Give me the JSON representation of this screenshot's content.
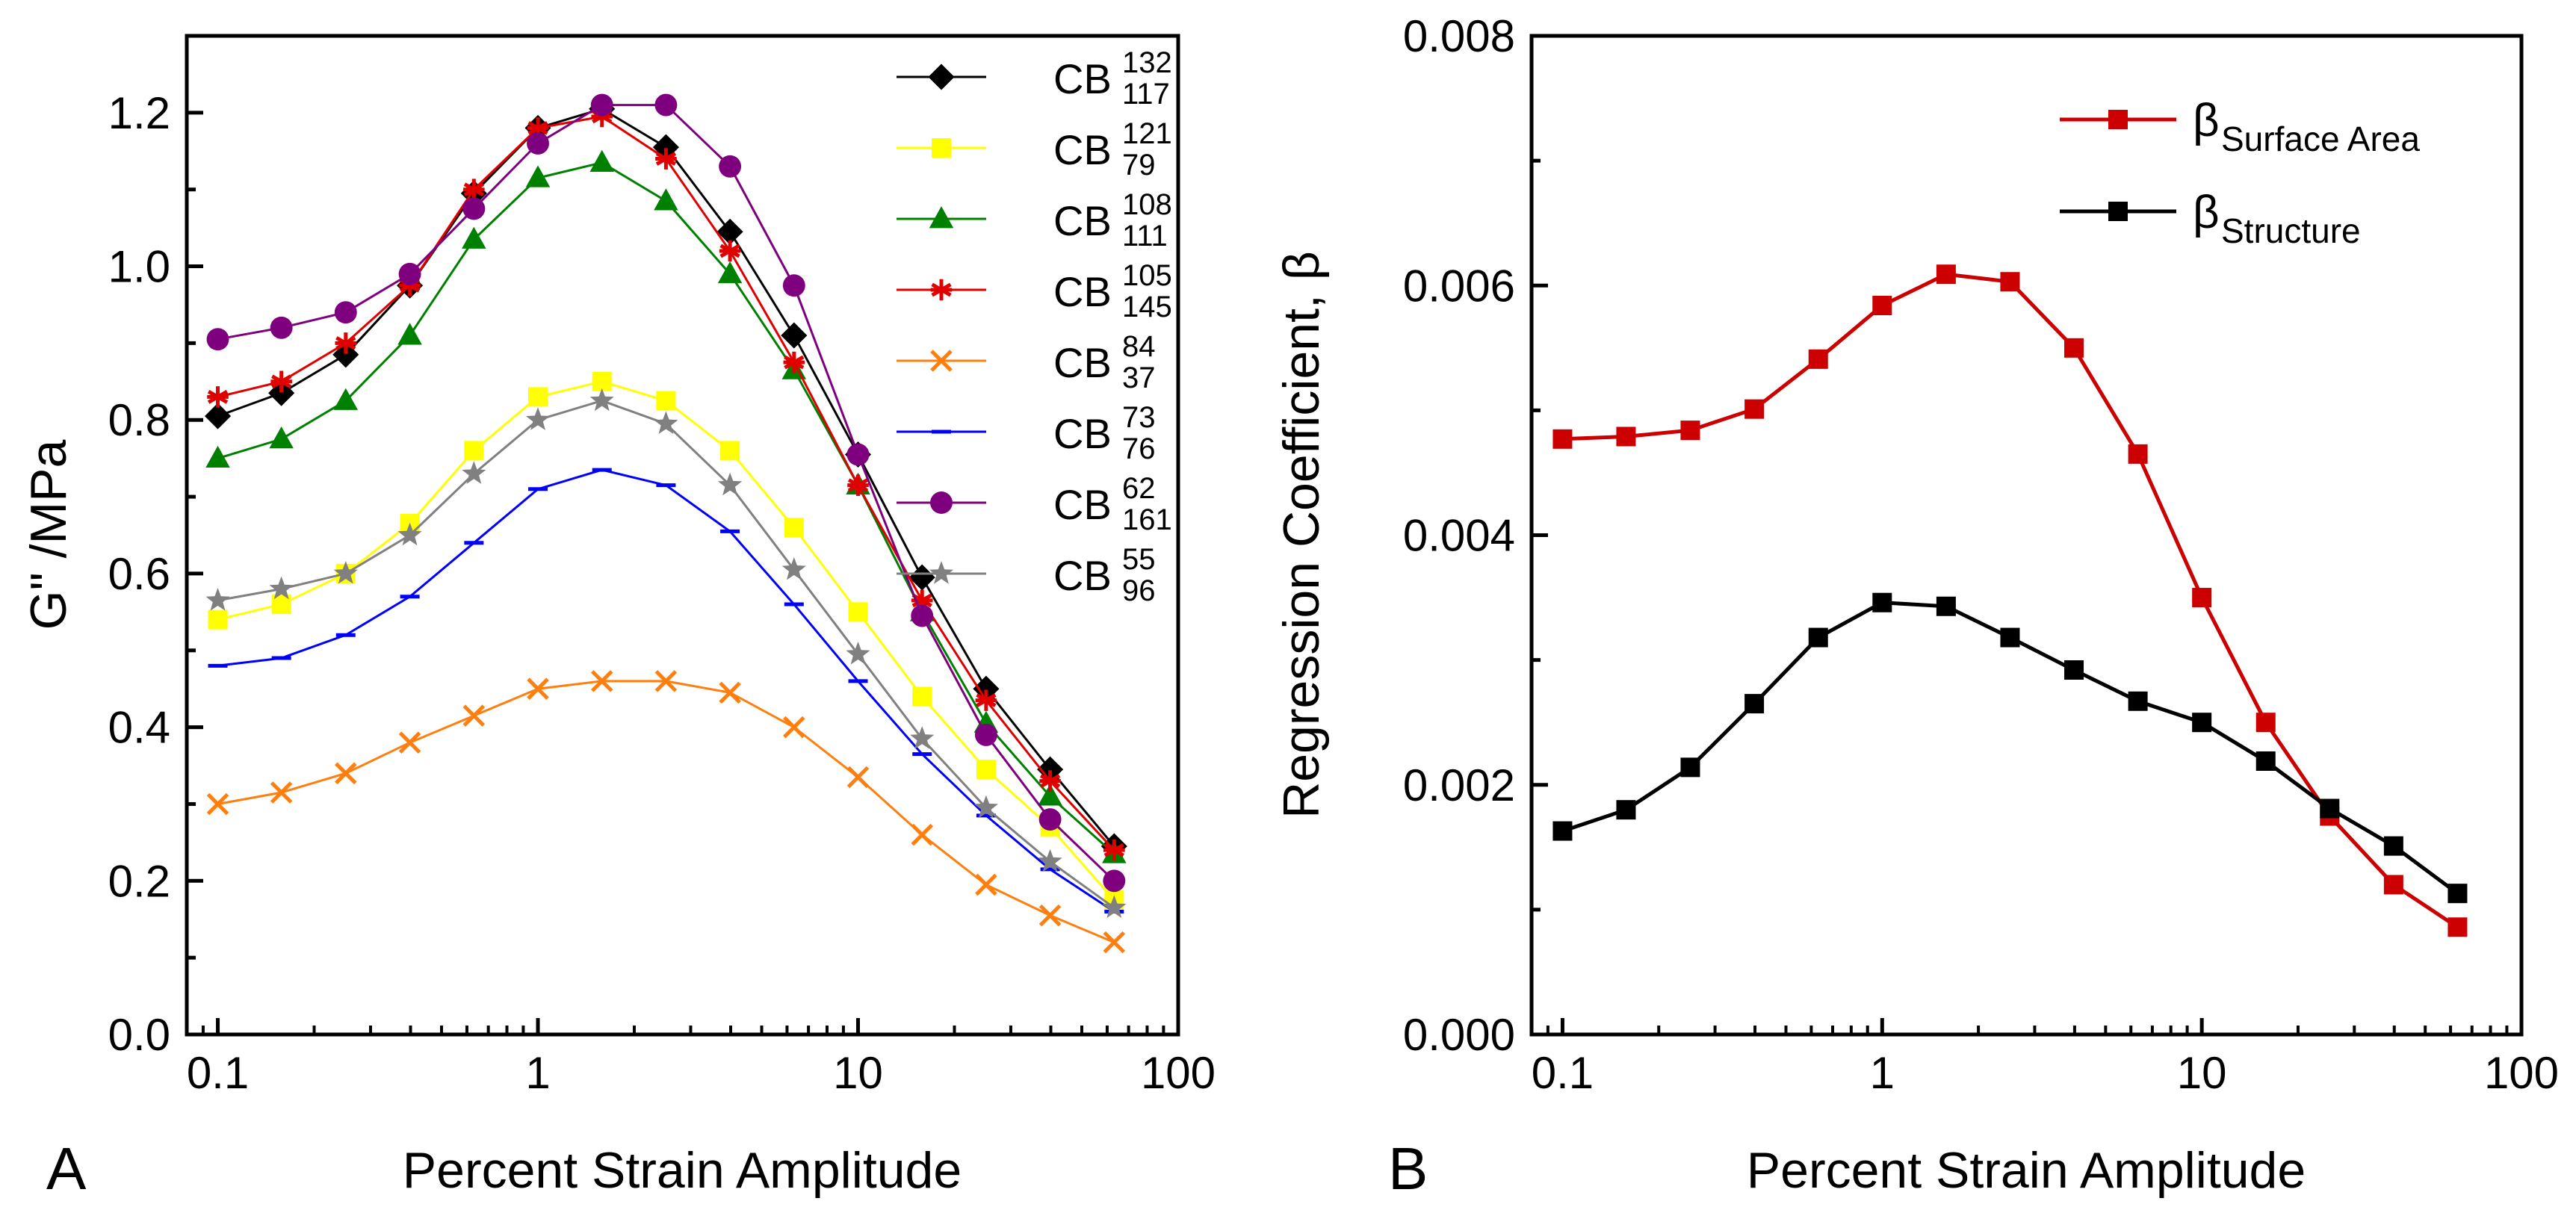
{
  "chart_data": [
    {
      "panel": "A",
      "type": "line",
      "xscale": "log",
      "xlim": [
        0.08,
        100
      ],
      "ylim": [
        0,
        1.3
      ],
      "xlabel": "Percent Strain Amplitude",
      "ylabel": "G\" /MPa",
      "xticks": [
        "0.1",
        "1",
        "10",
        "100"
      ],
      "yticks": [
        "0.0",
        "0.2",
        "0.4",
        "0.6",
        "0.8",
        "1.0",
        "1.2"
      ],
      "legend_position": "top-right",
      "x": [
        0.1,
        0.158,
        0.251,
        0.398,
        0.631,
        1.0,
        1.585,
        2.512,
        3.981,
        6.31,
        10.0,
        15.85,
        25.12,
        39.81,
        63.1
      ],
      "series": [
        {
          "name": "CB",
          "sup": "132",
          "sub": "117",
          "color": "#000000",
          "marker": "diamond",
          "values": [
            0.805,
            0.835,
            0.885,
            0.975,
            1.095,
            1.18,
            1.205,
            1.155,
            1.045,
            0.91,
            0.755,
            0.595,
            0.45,
            0.345,
            0.245
          ]
        },
        {
          "name": "CB",
          "sup": "121",
          "sub": "79",
          "color": "#ffff00",
          "marker": "square",
          "values": [
            0.54,
            0.56,
            0.6,
            0.665,
            0.76,
            0.83,
            0.85,
            0.825,
            0.76,
            0.66,
            0.55,
            0.44,
            0.345,
            0.27,
            0.175
          ]
        },
        {
          "name": "CB",
          "sup": "108",
          "sub": "111",
          "color": "#008000",
          "marker": "triangle",
          "values": [
            0.75,
            0.775,
            0.825,
            0.91,
            1.035,
            1.115,
            1.135,
            1.085,
            0.99,
            0.865,
            0.715,
            0.55,
            0.405,
            0.31,
            0.235
          ]
        },
        {
          "name": "CB",
          "sup": "105",
          "sub": "145",
          "color": "#e00000",
          "marker": "star6",
          "values": [
            0.83,
            0.85,
            0.9,
            0.975,
            1.1,
            1.18,
            1.195,
            1.14,
            1.02,
            0.875,
            0.715,
            0.565,
            0.435,
            0.33,
            0.24
          ]
        },
        {
          "name": "CB",
          "sup": "84",
          "sub": "37",
          "color": "#ff7f0e",
          "marker": "x",
          "values": [
            0.3,
            0.315,
            0.34,
            0.38,
            0.415,
            0.45,
            0.46,
            0.46,
            0.445,
            0.4,
            0.335,
            0.26,
            0.195,
            0.155,
            0.12
          ]
        },
        {
          "name": "CB",
          "sup": "73",
          "sub": "76",
          "color": "#0000ff",
          "marker": "dash",
          "values": [
            0.48,
            0.49,
            0.52,
            0.57,
            0.64,
            0.71,
            0.735,
            0.715,
            0.655,
            0.56,
            0.46,
            0.365,
            0.285,
            0.215,
            0.16
          ]
        },
        {
          "name": "CB",
          "sup": "62",
          "sub": "161",
          "color": "#7f007f",
          "marker": "circle",
          "values": [
            0.905,
            0.92,
            0.94,
            0.99,
            1.075,
            1.16,
            1.21,
            1.21,
            1.13,
            0.975,
            0.755,
            0.545,
            0.39,
            0.28,
            0.2
          ]
        },
        {
          "name": "CB",
          "sup": "55",
          "sub": "96",
          "color": "#808080",
          "marker": "star5",
          "values": [
            0.565,
            0.58,
            0.6,
            0.65,
            0.73,
            0.8,
            0.825,
            0.795,
            0.715,
            0.605,
            0.495,
            0.385,
            0.295,
            0.225,
            0.165
          ]
        }
      ]
    },
    {
      "panel": "B",
      "type": "line",
      "xscale": "log",
      "xlim": [
        0.08,
        100
      ],
      "ylim": [
        0,
        0.008
      ],
      "xlabel": "Percent Strain Amplitude",
      "ylabel": "Regression Coefficient, β",
      "xticks": [
        "0.1",
        "1",
        "10",
        "100"
      ],
      "yticks": [
        "0.000",
        "0.002",
        "0.004",
        "0.006",
        "0.008"
      ],
      "legend_position": "top-right",
      "x": [
        0.1,
        0.158,
        0.251,
        0.398,
        0.631,
        1.0,
        1.585,
        2.512,
        3.981,
        6.31,
        10.0,
        15.85,
        25.12,
        39.81,
        63.1
      ],
      "series": [
        {
          "name": "β",
          "sub": "Surface Area",
          "color": "#cc0000",
          "marker": "square",
          "values": [
            0.00477,
            0.00479,
            0.00484,
            0.00501,
            0.00541,
            0.00584,
            0.00609,
            0.00603,
            0.0055,
            0.00465,
            0.0035,
            0.0025,
            0.00175,
            0.0012,
            0.00086
          ]
        },
        {
          "name": "β",
          "sub": "Structure",
          "color": "#000000",
          "marker": "square",
          "values": [
            0.00163,
            0.0018,
            0.00214,
            0.00265,
            0.00318,
            0.00346,
            0.00343,
            0.00318,
            0.00292,
            0.00267,
            0.0025,
            0.00219,
            0.00181,
            0.00151,
            0.00113
          ]
        }
      ]
    }
  ],
  "panel_labels": [
    "A",
    "B"
  ]
}
